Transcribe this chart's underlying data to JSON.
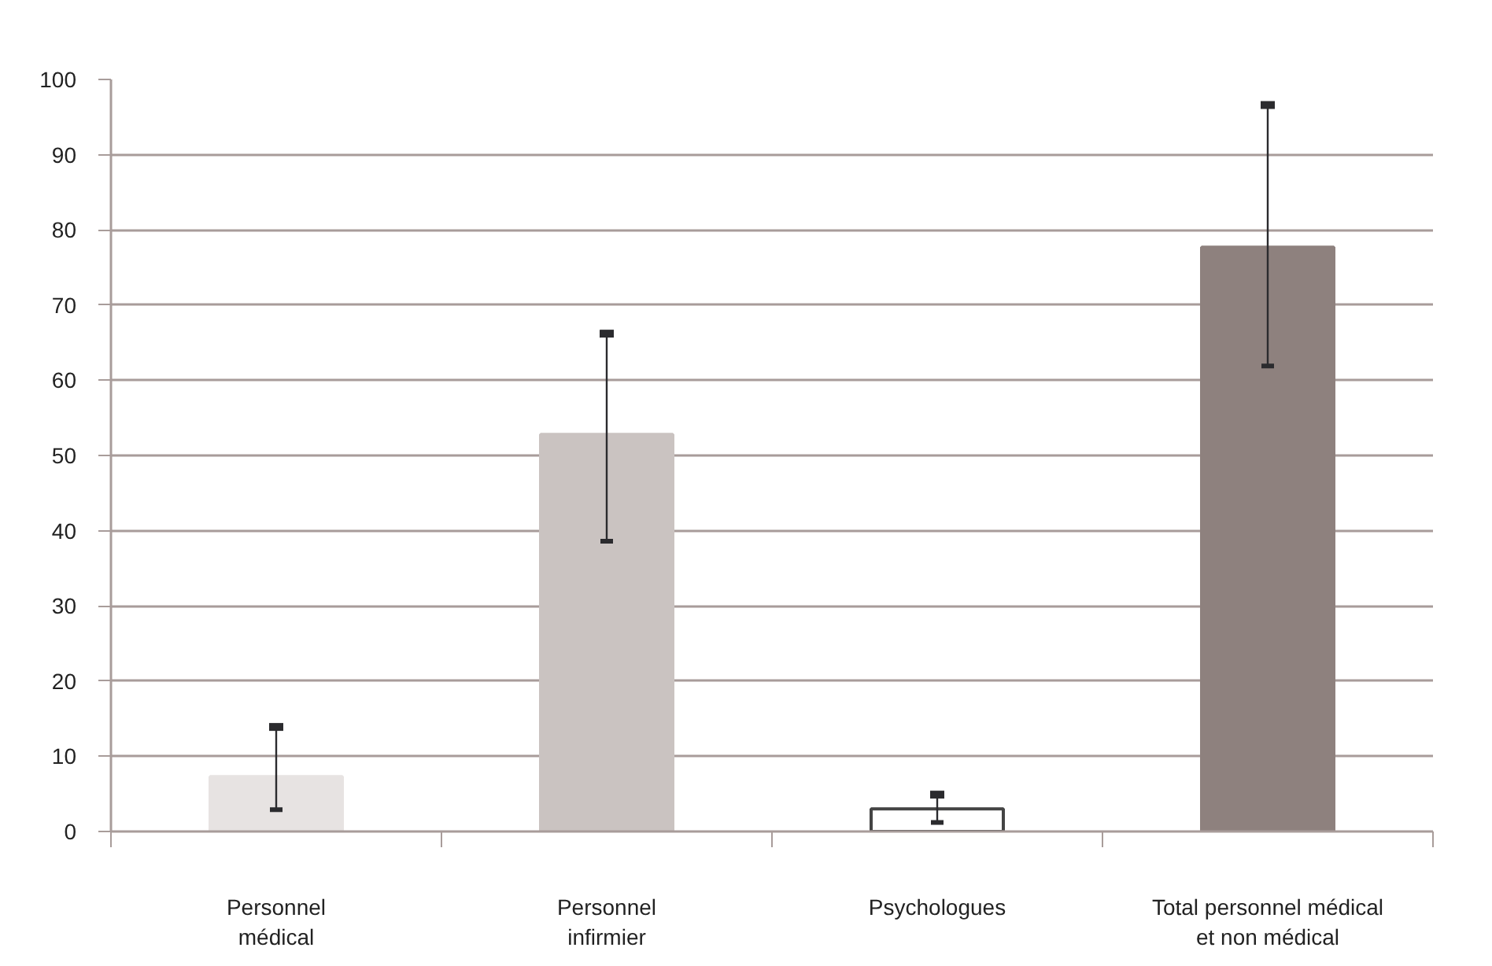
{
  "chart_data": {
    "type": "bar",
    "categories": [
      "Personnel\nmédical",
      "Personnel\ninfirmier",
      "Psychologues",
      "Total personnel médical\net non médical"
    ],
    "values": [
      7.3,
      52.8,
      3.0,
      77.7
    ],
    "colors": [
      "#e7e3e2",
      "#cac3c1",
      "#ffffff",
      "#8e817e"
    ],
    "errors": [
      [
        2.9,
        13.9
      ],
      [
        38.6,
        66.2
      ],
      [
        1.2,
        4.9
      ],
      [
        61.9,
        96.6
      ]
    ],
    "ylim": [
      0,
      100
    ],
    "yticks": [
      0,
      10,
      20,
      30,
      40,
      50,
      60,
      70,
      80,
      90,
      100
    ],
    "grid": "y"
  }
}
